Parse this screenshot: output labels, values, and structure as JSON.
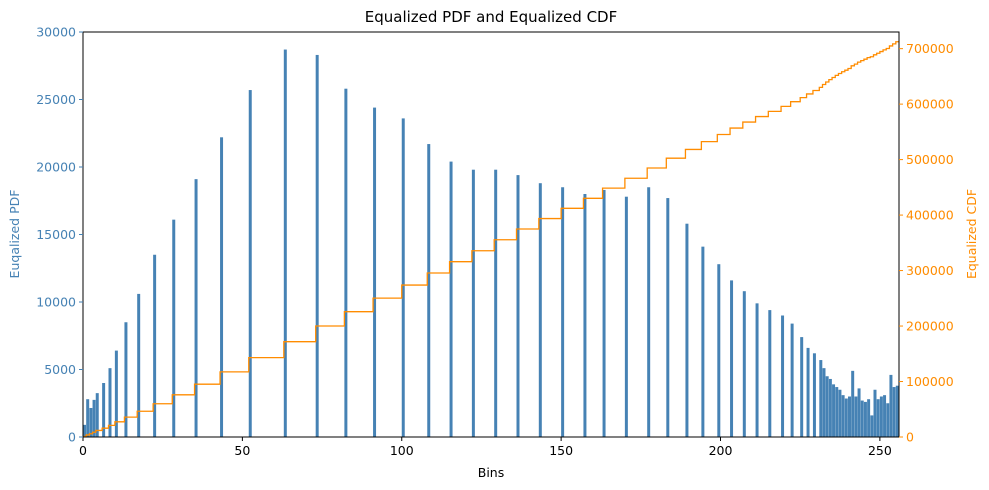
{
  "chart_data": {
    "type": "bar",
    "title": "Equalized PDF and Equalized CDF",
    "xlabel": "Bins",
    "ylabel": "Euqalized PDF",
    "y2label": "Equalized CDF",
    "xlim": [
      0,
      256
    ],
    "ylim": [
      0,
      30000
    ],
    "y2lim": [
      0,
      730000
    ],
    "x_ticks": [
      0,
      50,
      100,
      150,
      200,
      250
    ],
    "y_ticks": [
      0,
      5000,
      10000,
      15000,
      20000,
      25000,
      30000
    ],
    "y2_ticks": [
      0,
      100000,
      200000,
      300000,
      400000,
      500000,
      600000,
      700000
    ],
    "grid": false,
    "colors": {
      "pdf": "#4682b4",
      "cdf": "#ff8c00"
    },
    "series": [
      {
        "role": "pdf",
        "kind": "bar",
        "bins": [
          0,
          1,
          2,
          3,
          4,
          6,
          8,
          10,
          13,
          17,
          22,
          28,
          35,
          43,
          52,
          63,
          73,
          82,
          91,
          100,
          108,
          115,
          122,
          129,
          136,
          143,
          150,
          157,
          163,
          170,
          177,
          183,
          189,
          194,
          199,
          203,
          207,
          211,
          215,
          219,
          222,
          225,
          227,
          229,
          231,
          232,
          233,
          234,
          235,
          236,
          237,
          238,
          239,
          240,
          241,
          242,
          243,
          244,
          245,
          246,
          247,
          248,
          249,
          250,
          251,
          252,
          253,
          254,
          255
        ],
        "values": [
          900,
          2800,
          2150,
          2750,
          3250,
          4000,
          5100,
          6400,
          8500,
          10600,
          13500,
          16100,
          19100,
          22200,
          25700,
          28700,
          28300,
          25800,
          24400,
          23600,
          21700,
          20400,
          19800,
          19800,
          19400,
          18800,
          18500,
          18000,
          18300,
          17800,
          18500,
          17700,
          15800,
          14100,
          12800,
          11600,
          10800,
          9900,
          9400,
          9000,
          8400,
          7400,
          6600,
          6200,
          5700,
          5100,
          4500,
          4300,
          3900,
          3700,
          3500,
          3100,
          2850,
          3000,
          4900,
          3000,
          3600,
          2700,
          2600,
          2800,
          1600,
          3500,
          2800,
          3000,
          3100,
          2500,
          4600,
          3700,
          3800
        ]
      },
      {
        "role": "cdf",
        "kind": "step",
        "bins": [
          0,
          1,
          2,
          3,
          4,
          6,
          8,
          10,
          13,
          17,
          22,
          28,
          35,
          43,
          52,
          63,
          73,
          82,
          91,
          100,
          108,
          115,
          122,
          129,
          136,
          143,
          150,
          157,
          163,
          170,
          177,
          183,
          189,
          194,
          199,
          203,
          207,
          211,
          215,
          219,
          222,
          225,
          227,
          229,
          231,
          232,
          233,
          234,
          235,
          236,
          237,
          238,
          239,
          240,
          241,
          242,
          243,
          244,
          245,
          246,
          247,
          248,
          249,
          250,
          251,
          252,
          253,
          254,
          255
        ],
        "values": [
          900,
          3700,
          5850,
          8600,
          11850,
          15850,
          20950,
          27350,
          35850,
          46450,
          59950,
          76050,
          95150,
          117350,
          143050,
          171750,
          200050,
          225850,
          250250,
          273850,
          295550,
          315950,
          335750,
          355550,
          374950,
          393750,
          412250,
          430250,
          448550,
          466350,
          484850,
          502550,
          518350,
          532450,
          545250,
          556850,
          567650,
          577550,
          586950,
          595950,
          604350,
          611750,
          618350,
          624550,
          630250,
          635350,
          639850,
          644150,
          648050,
          651750,
          655250,
          658350,
          661200,
          664200,
          669100,
          672100,
          675700,
          678400,
          681000,
          683800,
          685400,
          688900,
          691700,
          694700,
          697800,
          700300,
          704900,
          708600,
          712400
        ]
      }
    ]
  }
}
